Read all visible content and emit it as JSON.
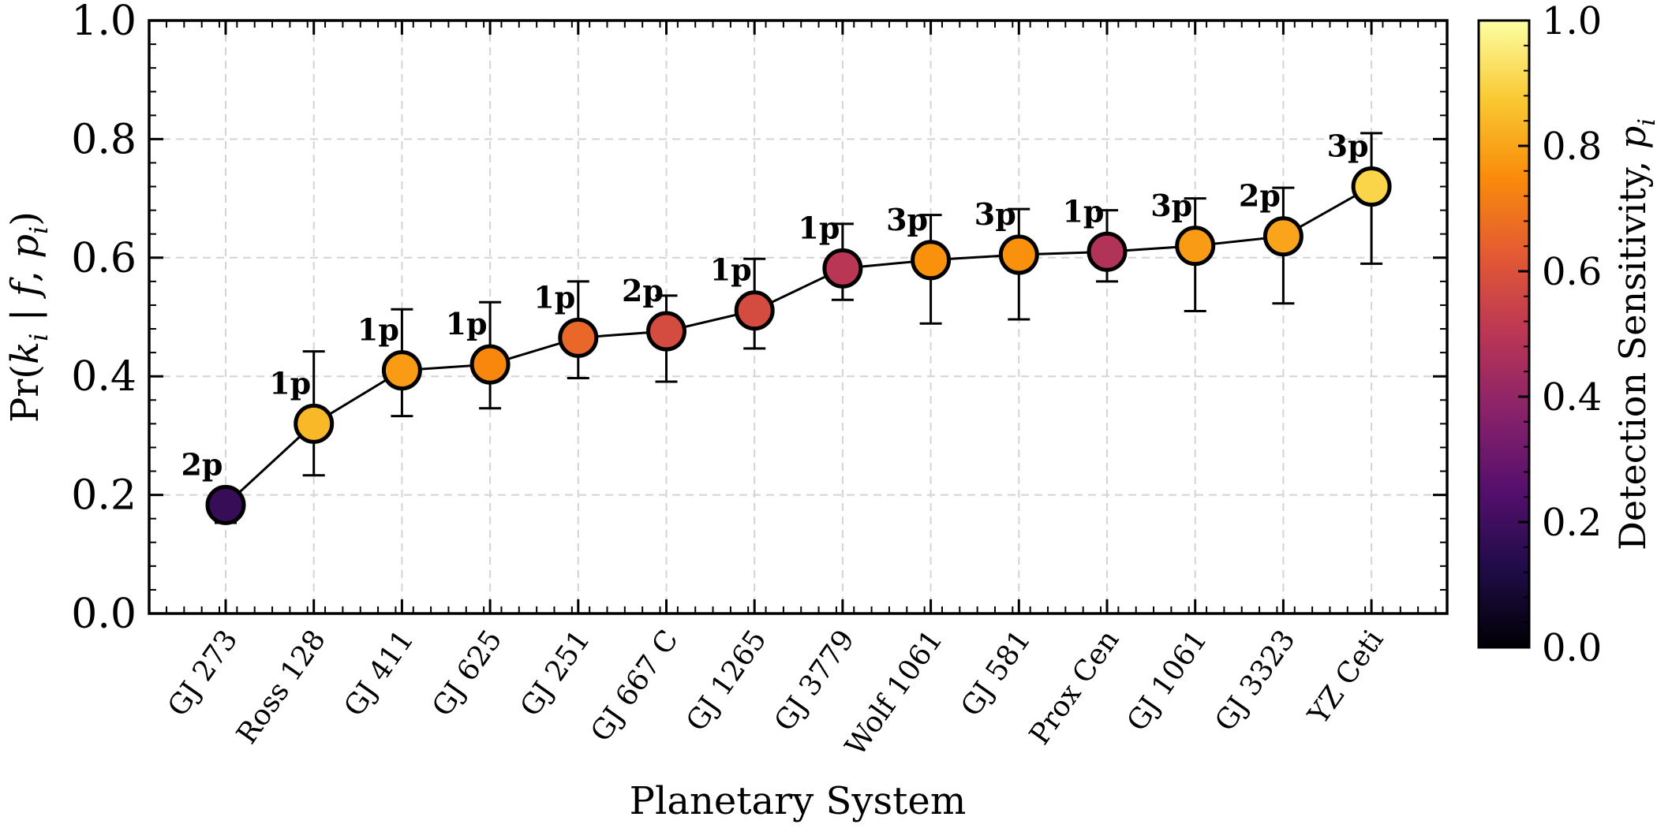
{
  "chart_data": {
    "type": "scatter",
    "title": "",
    "xlabel": "Planetary System",
    "ylabel": "Pr(k_i | f, p_i)",
    "ylim": [
      0.0,
      1.0
    ],
    "yticks": [
      "0.0",
      "0.2",
      "0.4",
      "0.6",
      "0.8",
      "1.0"
    ],
    "grid": true,
    "connected_line": true,
    "categories": [
      "GJ 273",
      "Ross 128",
      "GJ 411",
      "GJ 625",
      "GJ 251",
      "GJ 667 C",
      "GJ 1265",
      "GJ 3779",
      "Wolf 1061",
      "GJ 581",
      "Prox Cen",
      "GJ 1061",
      "GJ 3323",
      "YZ Ceti"
    ],
    "values": [
      0.183,
      0.32,
      0.41,
      0.42,
      0.465,
      0.476,
      0.511,
      0.582,
      0.596,
      0.605,
      0.61,
      0.62,
      0.636,
      0.72
    ],
    "err_low": [
      0.03,
      0.087,
      0.077,
      0.074,
      0.068,
      0.085,
      0.064,
      0.053,
      0.107,
      0.109,
      0.05,
      0.11,
      0.113,
      0.13
    ],
    "err_high": [
      0.0,
      0.122,
      0.103,
      0.105,
      0.095,
      0.06,
      0.087,
      0.075,
      0.076,
      0.077,
      0.07,
      0.08,
      0.082,
      0.09
    ],
    "sensitivity": [
      0.18,
      0.84,
      0.78,
      0.74,
      0.66,
      0.58,
      0.58,
      0.5,
      0.76,
      0.76,
      0.48,
      0.78,
      0.8,
      0.9
    ],
    "labels": [
      "2p",
      "1p",
      "1p",
      "1p",
      "1p",
      "2p",
      "1p",
      "1p",
      "3p",
      "3p",
      "1p",
      "3p",
      "2p",
      "3p"
    ],
    "colorbar": {
      "label_main": "Detection Sensitivity, ",
      "label_var": "p",
      "label_sub": "i",
      "range": [
        0.0,
        1.0
      ],
      "ticks": [
        "0.0",
        "0.2",
        "0.4",
        "0.6",
        "0.8",
        "1.0"
      ],
      "colormap": "inferno",
      "colors": [
        "#000004",
        "#1f0c48",
        "#550f6d",
        "#88226a",
        "#ba3655",
        "#e35933",
        "#f98c0a",
        "#f9c932",
        "#fcffa4"
      ]
    }
  }
}
